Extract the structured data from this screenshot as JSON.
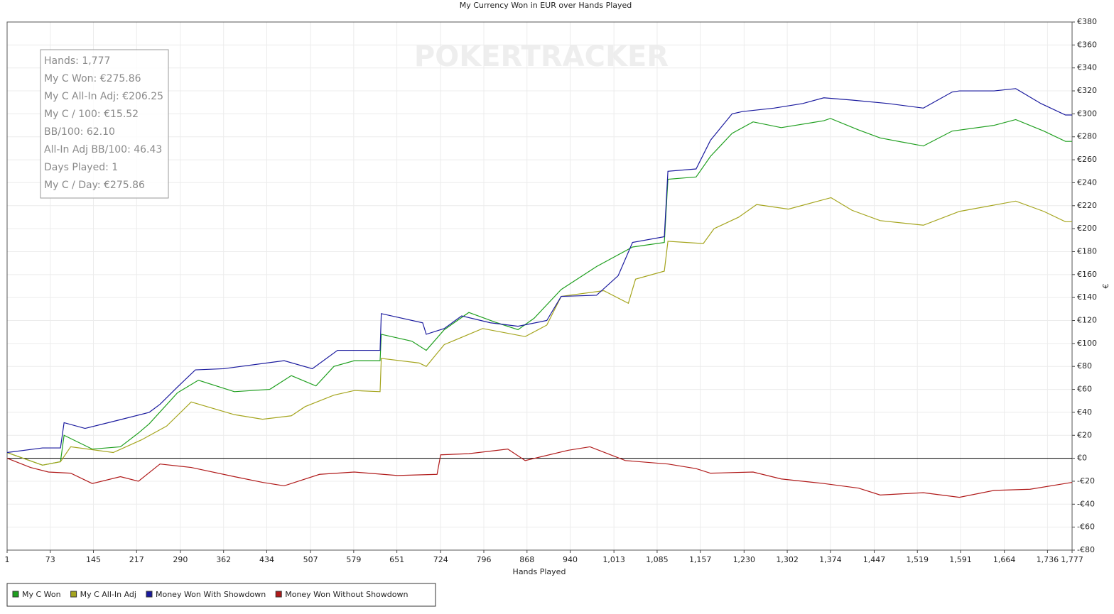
{
  "chart_data": {
    "type": "line",
    "title": "My Currency Won in EUR over Hands Played",
    "xlabel": "Hands Played",
    "ylabel": "€",
    "watermark": "POKERTRACKER",
    "info": [
      "Hands: 1,777",
      "My C Won: €275.86",
      "My C All-In Adj: €206.25",
      "My C / 100: €15.52",
      "BB/100: 62.10",
      "All-In Adj BB/100: 46.43",
      "Days Played: 1",
      "My C / Day: €275.86"
    ],
    "xlim": [
      1,
      1777
    ],
    "ylim": [
      -80,
      380
    ],
    "grid": true,
    "legend": "bottom-left",
    "xticks": [
      1,
      73,
      145,
      217,
      290,
      362,
      434,
      507,
      579,
      651,
      724,
      796,
      868,
      940,
      {
        "value": 1013,
        "label": "1,013"
      },
      {
        "value": 1085,
        "label": "1,085"
      },
      {
        "value": 1157,
        "label": "1,157"
      },
      {
        "value": 1230,
        "label": "1,230"
      },
      {
        "value": 1302,
        "label": "1,302"
      },
      {
        "value": 1374,
        "label": "1,374"
      },
      {
        "value": 1447,
        "label": "1,447"
      },
      {
        "value": 1519,
        "label": "1,519"
      },
      {
        "value": 1591,
        "label": "1,591"
      },
      {
        "value": 1664,
        "label": "1,664"
      },
      {
        "value": 1736,
        "label": "1,736"
      },
      {
        "value": 1777,
        "label": "1,777"
      }
    ],
    "yticks": [
      {
        "value": -80,
        "label": "-€80"
      },
      {
        "value": -60,
        "label": "-€60"
      },
      {
        "value": -40,
        "label": "-€40"
      },
      {
        "value": -20,
        "label": "-€20"
      },
      {
        "value": 0,
        "label": "€0"
      },
      {
        "value": 20,
        "label": "€20"
      },
      {
        "value": 40,
        "label": "€40"
      },
      {
        "value": 60,
        "label": "€60"
      },
      {
        "value": 80,
        "label": "€80"
      },
      {
        "value": 100,
        "label": "€100"
      },
      {
        "value": 120,
        "label": "€120"
      },
      {
        "value": 140,
        "label": "€140"
      },
      {
        "value": 160,
        "label": "€160"
      },
      {
        "value": 180,
        "label": "€180"
      },
      {
        "value": 200,
        "label": "€200"
      },
      {
        "value": 220,
        "label": "€220"
      },
      {
        "value": 240,
        "label": "€240"
      },
      {
        "value": 260,
        "label": "€260"
      },
      {
        "value": 280,
        "label": "€280"
      },
      {
        "value": 300,
        "label": "€300"
      },
      {
        "value": 320,
        "label": "€320"
      },
      {
        "value": 340,
        "label": "€340"
      },
      {
        "value": 360,
        "label": "€360"
      },
      {
        "value": 380,
        "label": "€380"
      }
    ],
    "series": [
      {
        "name": "My C Won",
        "color": "#1f9f1f",
        "x": [
          1,
          60,
          90,
          96,
          143,
          190,
          220,
          238,
          285,
          320,
          380,
          439,
          475,
          516,
          546,
          580,
          623,
          625,
          676,
          700,
          730,
          771,
          818,
          853,
          880,
          925,
          984,
          1044,
          1097,
          1103,
          1150,
          1174,
          1210,
          1245,
          1292,
          1363,
          1374,
          1421,
          1457,
          1529,
          1577,
          1647,
          1683,
          1730,
          1766,
          1777
        ],
        "values": [
          5,
          -6,
          -3,
          20,
          8,
          10,
          22,
          30,
          57,
          68,
          58,
          60,
          72,
          63,
          80,
          85,
          85,
          108,
          102,
          94,
          112,
          127,
          118,
          112,
          122,
          147,
          167,
          184,
          188,
          243,
          245,
          263,
          283,
          293,
          288,
          294,
          296,
          286,
          279,
          272,
          285,
          290,
          295,
          285,
          276,
          276
        ]
      },
      {
        "name": "My C All-In Adj",
        "color": "#a5a51e",
        "x": [
          1,
          60,
          90,
          107,
          178,
          225,
          267,
          308,
          380,
          427,
          475,
          498,
          546,
          580,
          623,
          625,
          688,
          700,
          730,
          794,
          865,
          901,
          925,
          996,
          1037,
          1049,
          1097,
          1103,
          1162,
          1180,
          1221,
          1251,
          1304,
          1375,
          1410,
          1457,
          1529,
          1589,
          1683,
          1730,
          1766,
          1777
        ],
        "values": [
          5,
          -6,
          -3,
          10,
          5,
          16,
          28,
          49,
          38,
          34,
          37,
          45,
          55,
          59,
          58,
          87,
          83,
          80,
          99,
          113,
          106,
          116,
          141,
          146,
          135,
          156,
          163,
          189,
          187,
          200,
          210,
          221,
          217,
          227,
          216,
          207,
          203,
          215,
          224,
          215,
          206,
          206
        ]
      },
      {
        "name": "Money Won With Showdown",
        "color": "#1a1a9e",
        "x": [
          1,
          60,
          90,
          96,
          131,
          185,
          238,
          256,
          285,
          315,
          362,
          463,
          510,
          552,
          623,
          625,
          694,
          700,
          730,
          759,
          807,
          853,
          901,
          925,
          984,
          1020,
          1044,
          1097,
          1103,
          1150,
          1174,
          1210,
          1227,
          1280,
          1328,
          1363,
          1410,
          1470,
          1529,
          1577,
          1589,
          1647,
          1683,
          1725,
          1766,
          1777
        ],
        "values": [
          5,
          9,
          9,
          31,
          26,
          33,
          40,
          47,
          62,
          77,
          78,
          85,
          78,
          94,
          94,
          126,
          118,
          108,
          113,
          124,
          118,
          115,
          120,
          141,
          142,
          159,
          188,
          193,
          250,
          252,
          277,
          300,
          302,
          305,
          309,
          314,
          312,
          309,
          305,
          319,
          320,
          320,
          322,
          309,
          299,
          299
        ]
      },
      {
        "name": "Money Won Without Showdown",
        "color": "#b01a1a",
        "x": [
          1,
          40,
          70,
          107,
          143,
          190,
          220,
          256,
          308,
          380,
          427,
          463,
          522,
          580,
          652,
          718,
          724,
          771,
          836,
          865,
          937,
          973,
          1032,
          1103,
          1150,
          1174,
          1245,
          1292,
          1363,
          1421,
          1457,
          1529,
          1589,
          1647,
          1707,
          1777
        ],
        "values": [
          0,
          -8,
          -12,
          -13,
          -22,
          -16,
          -20,
          -5,
          -8,
          -16,
          -21,
          -24,
          -14,
          -12,
          -15,
          -14,
          3,
          4,
          8,
          -2,
          7,
          10,
          -2,
          -5,
          -9,
          -13,
          -12,
          -18,
          -22,
          -26,
          -32,
          -30,
          -34,
          -28,
          -27,
          -21
        ]
      }
    ]
  }
}
